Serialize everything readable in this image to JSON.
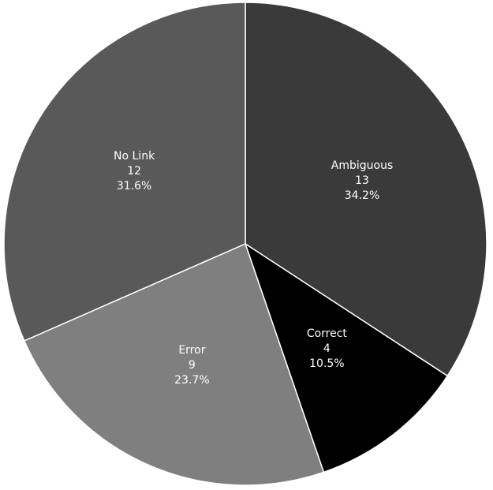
{
  "chart_data": {
    "type": "pie",
    "categories": [
      "Ambiguous",
      "Correct",
      "Error",
      "No Link"
    ],
    "values": [
      13,
      4,
      9,
      12
    ],
    "percent_labels": [
      "34.2%",
      "10.5%",
      "23.7%",
      "31.6%"
    ],
    "colors": [
      "#3a3a3a",
      "#000000",
      "#7f7f7f",
      "#595959"
    ]
  }
}
